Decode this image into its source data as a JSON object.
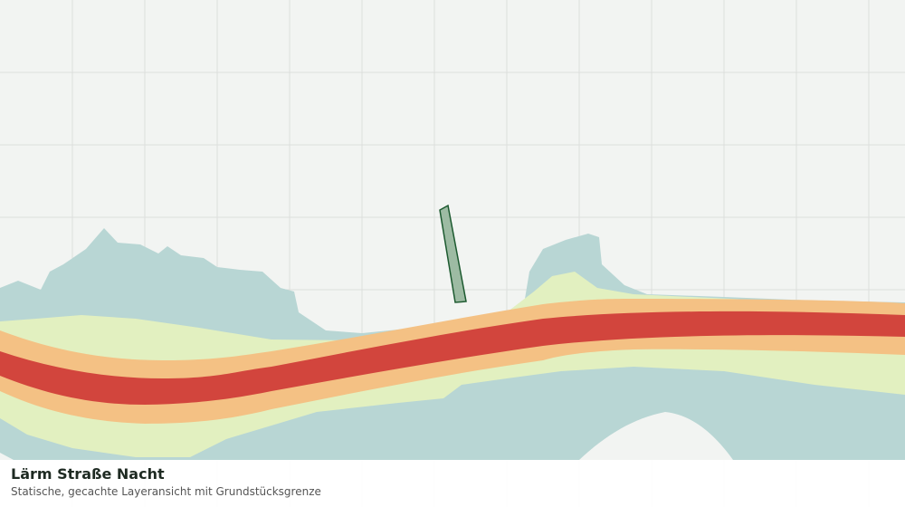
{
  "header": {
    "title": "Lärm Straße Nacht",
    "subtitle": "Statische, gecachte Layeransicht mit Grundstücksgrenze"
  }
}
